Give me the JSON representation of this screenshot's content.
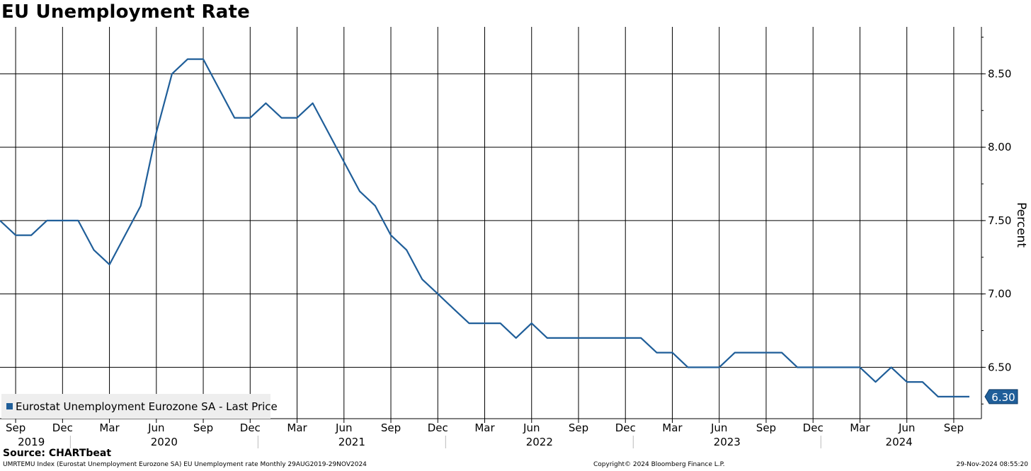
{
  "chart_data": {
    "type": "line",
    "title": "EU Unemployment Rate",
    "ylabel": "Percent",
    "ylim": [
      6.15,
      8.82
    ],
    "yticks": [
      "6.50",
      "7.00",
      "7.50",
      "8.00",
      "8.50"
    ],
    "grid": true,
    "legend_placement": "bottom-left",
    "x_month_labels": [
      "Sep",
      "Dec",
      "Mar",
      "Jun",
      "Sep",
      "Dec",
      "Mar",
      "Jun",
      "Sep",
      "Dec",
      "Mar",
      "Jun",
      "Sep",
      "Dec",
      "Mar",
      "Jun",
      "Sep",
      "Dec",
      "Mar",
      "Jun",
      "Sep"
    ],
    "x_year_labels": [
      "2019",
      "2020",
      "2021",
      "2022",
      "2023",
      "2024"
    ],
    "series": [
      {
        "name": "Eurostat Unemployment Eurozone SA - Last Price",
        "color": "#1f5e99",
        "x": [
          "2019-08",
          "2019-09",
          "2019-10",
          "2019-11",
          "2019-12",
          "2020-01",
          "2020-02",
          "2020-03",
          "2020-04",
          "2020-05",
          "2020-06",
          "2020-07",
          "2020-08",
          "2020-09",
          "2020-10",
          "2020-11",
          "2020-12",
          "2021-01",
          "2021-02",
          "2021-03",
          "2021-04",
          "2021-05",
          "2021-06",
          "2021-07",
          "2021-08",
          "2021-09",
          "2021-10",
          "2021-11",
          "2021-12",
          "2022-01",
          "2022-02",
          "2022-03",
          "2022-04",
          "2022-05",
          "2022-06",
          "2022-07",
          "2022-08",
          "2022-09",
          "2022-10",
          "2022-11",
          "2022-12",
          "2023-01",
          "2023-02",
          "2023-03",
          "2023-04",
          "2023-05",
          "2023-06",
          "2023-07",
          "2023-08",
          "2023-09",
          "2023-10",
          "2023-11",
          "2023-12",
          "2024-01",
          "2024-02",
          "2024-03",
          "2024-04",
          "2024-05",
          "2024-06",
          "2024-07",
          "2024-08",
          "2024-09",
          "2024-10"
        ],
        "values": [
          7.5,
          7.4,
          7.4,
          7.5,
          7.5,
          7.5,
          7.3,
          7.2,
          7.4,
          7.6,
          8.1,
          8.5,
          8.6,
          8.6,
          8.4,
          8.2,
          8.2,
          8.3,
          8.2,
          8.2,
          8.3,
          8.1,
          7.9,
          7.7,
          7.6,
          7.4,
          7.3,
          7.1,
          7.0,
          6.9,
          6.8,
          6.8,
          6.8,
          6.7,
          6.8,
          6.7,
          6.7,
          6.7,
          6.7,
          6.7,
          6.7,
          6.7,
          6.6,
          6.6,
          6.5,
          6.5,
          6.5,
          6.6,
          6.6,
          6.6,
          6.6,
          6.5,
          6.5,
          6.5,
          6.5,
          6.5,
          6.4,
          6.5,
          6.4,
          6.4,
          6.3,
          6.3,
          6.3
        ],
        "last_value_label": "6.30"
      }
    ]
  },
  "footer": {
    "source": "Source: CHARTbeat",
    "left": "UMRTEMU Index (Eurostat Unemployment Eurozone SA) EU Unemployment rate  Monthly 29AUG2019-29NOV2024",
    "center": "Copyright© 2024 Bloomberg Finance L.P.",
    "right": "29-Nov-2024 08:55:20"
  }
}
